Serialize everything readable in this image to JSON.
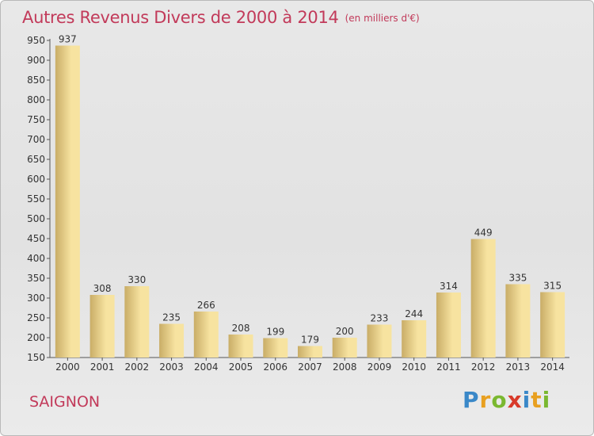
{
  "title": "Autres Revenus Divers de 2000 à 2014",
  "unit_note": "(en milliers d'€)",
  "commune": "SAIGNON",
  "logo": {
    "letters": [
      "P",
      "r",
      "o",
      "x",
      "i",
      "t",
      "i"
    ],
    "colors": [
      "#3a88c8",
      "#e8a020",
      "#7ab830",
      "#d83a2a",
      "#3a88c8",
      "#e8a020",
      "#7ab830"
    ]
  },
  "colors": {
    "bar_light": "#f7e3a0",
    "bar_dark": "#c9ad67",
    "accent": "#c23a5a"
  },
  "chart_data": {
    "type": "bar",
    "title": "Autres Revenus Divers de 2000 à 2014",
    "categories": [
      "2000",
      "2001",
      "2002",
      "2003",
      "2004",
      "2005",
      "2006",
      "2007",
      "2008",
      "2009",
      "2010",
      "2011",
      "2012",
      "2013",
      "2014"
    ],
    "values": [
      937,
      308,
      330,
      235,
      266,
      208,
      199,
      179,
      200,
      233,
      244,
      314,
      449,
      335,
      315
    ],
    "xlabel": "",
    "ylabel": "",
    "ylim": [
      150,
      950
    ],
    "yticks": [
      150,
      200,
      250,
      300,
      350,
      400,
      450,
      500,
      550,
      600,
      650,
      700,
      750,
      800,
      850,
      900,
      950
    ],
    "grid": false,
    "legend": "none"
  }
}
